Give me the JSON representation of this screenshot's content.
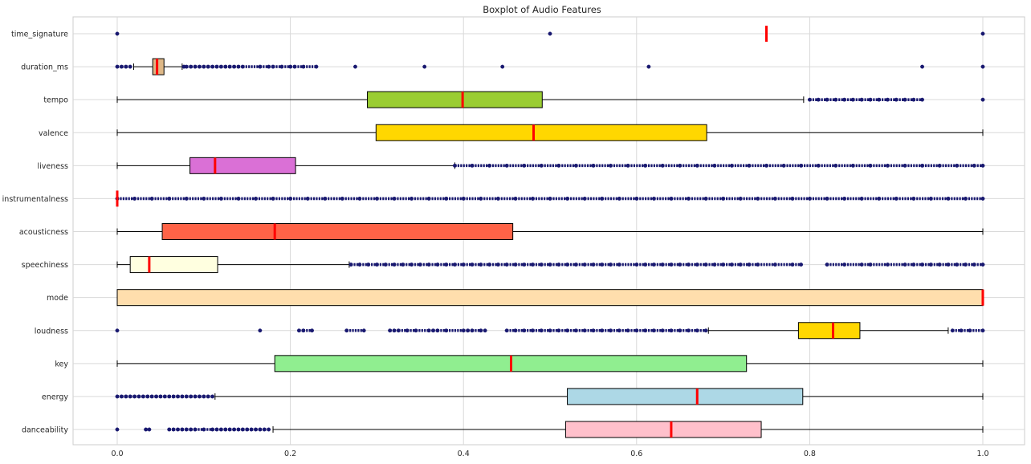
{
  "chart_data": {
    "type": "boxplot",
    "title": "Boxplot of Audio Features",
    "xlim": [
      -0.05,
      1.05
    ],
    "x_ticks": [
      "0.0",
      "0.2",
      "0.4",
      "0.6",
      "0.8",
      "1.0"
    ],
    "x_tick_values": [
      0.0,
      0.2,
      0.4,
      0.6,
      0.8,
      1.0
    ],
    "grid": true,
    "outlier_color": "#191970",
    "median_color": "#ff0000",
    "series": [
      {
        "name": "danceability",
        "color": "#ffc0cb",
        "q1": 0.518,
        "median": 0.64,
        "q3": 0.744,
        "whislo": 0.18,
        "whishi": 1.0,
        "outliers": [
          0.0,
          0.033,
          0.037,
          0.06,
          0.065,
          0.07,
          0.075,
          0.08,
          0.085,
          0.09,
          0.1,
          0.11,
          0.115,
          0.12,
          0.125,
          0.13,
          0.135,
          0.14,
          0.145,
          0.15,
          0.155,
          0.16,
          0.165,
          0.17,
          0.175
        ]
      },
      {
        "name": "energy",
        "color": "#add8e6",
        "q1": 0.52,
        "median": 0.67,
        "q3": 0.792,
        "whislo": 0.113,
        "whishi": 1.0,
        "outliers": [
          0.0,
          0.005,
          0.01,
          0.015,
          0.02,
          0.025,
          0.03,
          0.035,
          0.04,
          0.045,
          0.05,
          0.055,
          0.06,
          0.065,
          0.07,
          0.075,
          0.08,
          0.085,
          0.09,
          0.095,
          0.1,
          0.105,
          0.11
        ]
      },
      {
        "name": "key",
        "color": "#90ee90",
        "q1": 0.182,
        "median": 0.455,
        "q3": 0.727,
        "whislo": 0.0,
        "whishi": 1.0,
        "outliers": []
      },
      {
        "name": "loudness",
        "color": "#ffd700",
        "q1": 0.787,
        "median": 0.827,
        "q3": 0.858,
        "whislo": 0.683,
        "whishi": 0.96,
        "outliers": [
          0.0,
          0.165,
          0.21,
          0.215,
          0.225,
          0.265,
          0.285,
          0.315,
          0.32,
          0.325,
          0.335,
          0.345,
          0.36,
          0.365,
          0.37,
          0.38,
          0.4,
          0.405,
          0.41,
          0.42,
          0.425,
          0.45,
          0.46,
          0.47,
          0.48,
          0.49,
          0.5,
          0.51,
          0.52,
          0.53,
          0.54,
          0.55,
          0.56,
          0.57,
          0.58,
          0.59,
          0.6,
          0.61,
          0.62,
          0.63,
          0.64,
          0.65,
          0.66,
          0.67,
          0.68,
          0.965,
          0.975,
          0.985,
          1.0
        ]
      },
      {
        "name": "mode",
        "color": "#ffdead",
        "q1": 0.0,
        "median": 1.0,
        "q3": 1.0,
        "whislo": 0.0,
        "whishi": 1.0,
        "outliers": []
      },
      {
        "name": "speechiness",
        "color": "#ffffe0",
        "q1": 0.015,
        "median": 0.037,
        "q3": 0.116,
        "whislo": 0.0,
        "whishi": 0.268,
        "outliers": [
          0.27,
          0.28,
          0.29,
          0.3,
          0.31,
          0.32,
          0.33,
          0.34,
          0.35,
          0.36,
          0.37,
          0.38,
          0.39,
          0.4,
          0.41,
          0.42,
          0.43,
          0.44,
          0.45,
          0.46,
          0.47,
          0.48,
          0.49,
          0.5,
          0.51,
          0.52,
          0.53,
          0.54,
          0.55,
          0.56,
          0.57,
          0.58,
          0.6,
          0.61,
          0.62,
          0.63,
          0.64,
          0.65,
          0.66,
          0.67,
          0.68,
          0.69,
          0.7,
          0.71,
          0.72,
          0.73,
          0.74,
          0.76,
          0.78,
          0.79,
          0.82,
          0.84,
          0.86,
          0.87,
          0.89,
          0.91,
          0.92,
          0.93,
          0.94,
          0.95,
          0.96,
          0.97,
          0.98,
          0.99,
          1.0
        ]
      },
      {
        "name": "acousticness",
        "color": "#ff6347",
        "q1": 0.052,
        "median": 0.182,
        "q3": 0.457,
        "whislo": 0.0,
        "whishi": 1.0,
        "outliers": []
      },
      {
        "name": "instrumentalness",
        "color": "#ff0000",
        "q1": 0.0,
        "median": 0.0,
        "q3": 0.0,
        "whislo": 0.0,
        "whishi": 0.0,
        "outliers": [
          0.0,
          0.02,
          0.04,
          0.06,
          0.08,
          0.1,
          0.12,
          0.14,
          0.16,
          0.18,
          0.2,
          0.22,
          0.24,
          0.26,
          0.28,
          0.3,
          0.32,
          0.34,
          0.36,
          0.38,
          0.4,
          0.42,
          0.44,
          0.46,
          0.48,
          0.5,
          0.52,
          0.54,
          0.56,
          0.58,
          0.6,
          0.62,
          0.64,
          0.66,
          0.68,
          0.7,
          0.72,
          0.74,
          0.76,
          0.78,
          0.8,
          0.82,
          0.84,
          0.86,
          0.88,
          0.9,
          0.92,
          0.94,
          0.96,
          0.98,
          1.0
        ]
      },
      {
        "name": "liveness",
        "color": "#da70d6",
        "q1": 0.084,
        "median": 0.113,
        "q3": 0.206,
        "whislo": 0.0,
        "whishi": 0.39,
        "outliers": [
          0.39,
          0.41,
          0.43,
          0.45,
          0.47,
          0.49,
          0.51,
          0.53,
          0.55,
          0.57,
          0.59,
          0.61,
          0.63,
          0.65,
          0.67,
          0.69,
          0.71,
          0.73,
          0.75,
          0.77,
          0.79,
          0.81,
          0.83,
          0.85,
          0.87,
          0.89,
          0.91,
          0.93,
          0.95,
          0.97,
          0.99,
          1.0
        ]
      },
      {
        "name": "valence",
        "color": "#ffd700",
        "q1": 0.299,
        "median": 0.481,
        "q3": 0.681,
        "whislo": 0.0,
        "whishi": 1.0,
        "outliers": []
      },
      {
        "name": "tempo",
        "color": "#9acd32",
        "q1": 0.289,
        "median": 0.399,
        "q3": 0.491,
        "whislo": 0.0,
        "whishi": 0.793,
        "outliers": [
          0.8,
          0.81,
          0.82,
          0.83,
          0.84,
          0.85,
          0.86,
          0.87,
          0.88,
          0.89,
          0.9,
          0.91,
          0.92,
          0.93,
          1.0
        ]
      },
      {
        "name": "duration_ms",
        "color": "#deb887",
        "q1": 0.041,
        "median": 0.046,
        "q3": 0.054,
        "whislo": 0.019,
        "whishi": 0.075,
        "outliers": [
          0.0,
          0.005,
          0.01,
          0.015,
          0.077,
          0.08,
          0.085,
          0.09,
          0.095,
          0.1,
          0.105,
          0.11,
          0.115,
          0.12,
          0.125,
          0.13,
          0.135,
          0.14,
          0.145,
          0.165,
          0.175,
          0.18,
          0.19,
          0.2,
          0.205,
          0.215,
          0.23,
          0.275,
          0.355,
          0.445,
          0.614,
          0.93,
          1.0
        ]
      },
      {
        "name": "time_signature",
        "color": "#ff0000",
        "q1": 0.75,
        "median": 0.75,
        "q3": 0.75,
        "whislo": 0.75,
        "whishi": 0.75,
        "outliers": [
          0.0,
          0.5,
          1.0
        ]
      }
    ]
  }
}
